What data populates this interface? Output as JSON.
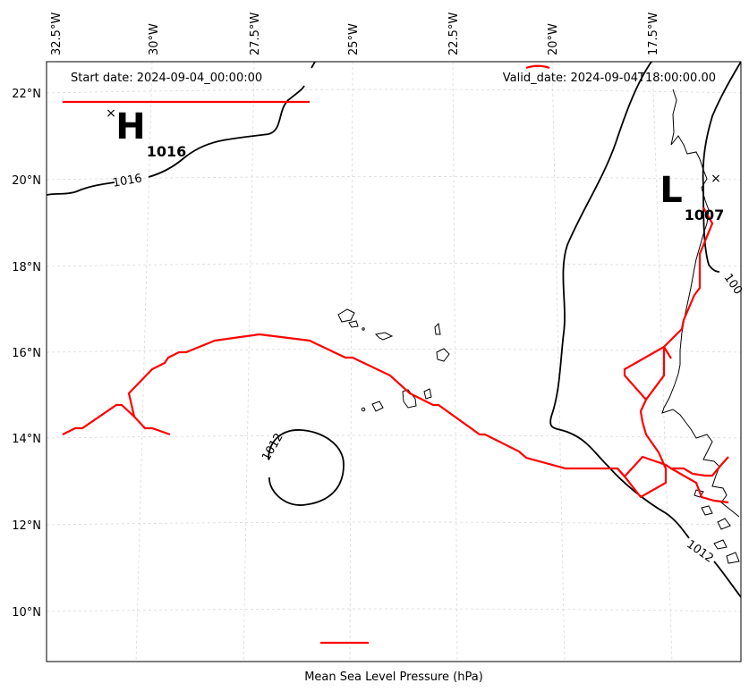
{
  "start_date": "Start date: 2024-09-04_00:00:00",
  "valid_date": "Valid_date: 2024-09-04T18:00:00.00",
  "x_axis_label": "Mean Sea Level Pressure (hPa)",
  "lon_ticks": [
    "32.5°W",
    "30°W",
    "27.5°W",
    "25°W",
    "22.5°W",
    "20°W",
    "17.5°W"
  ],
  "lat_ticks": [
    "22°N",
    "20°N",
    "18°N",
    "16°N",
    "14°N",
    "12°N",
    "10°N"
  ],
  "pressure_systems": {
    "high": {
      "letter": "H",
      "value": "1016"
    },
    "low": {
      "letter": "L",
      "value": "1007"
    }
  },
  "isobar_labels": [
    "1016",
    "1012",
    "1012",
    "100"
  ],
  "colors": {
    "isobar": "#000000",
    "feature_line": "#ff0000",
    "grid": "#cccccc",
    "coast": "#000000"
  }
}
